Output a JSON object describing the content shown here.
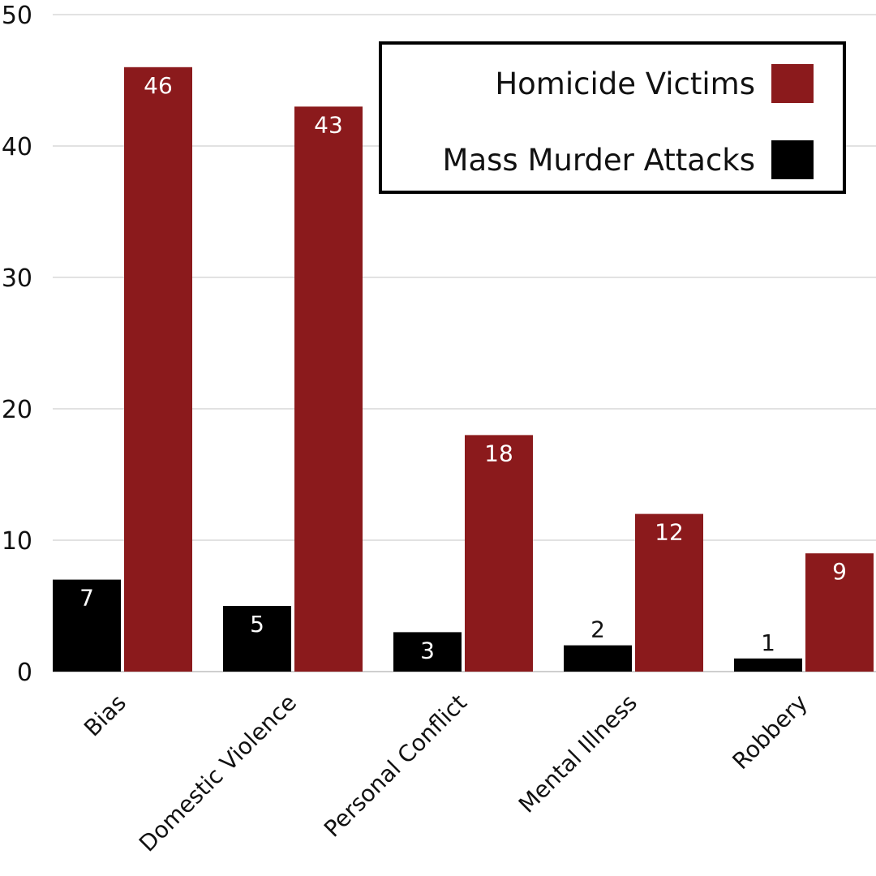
{
  "chart_data": {
    "type": "bar",
    "title": "",
    "xlabel": "",
    "ylabel": "",
    "categories": [
      "Bias",
      "Domestic Violence",
      "Personal Conflict",
      "Mental Illness",
      "Robbery"
    ],
    "series": [
      {
        "name": "Mass Murder Attacks",
        "values": [
          7,
          5,
          3,
          2,
          1
        ],
        "color": "#000000",
        "label_color": "#ffffff"
      },
      {
        "name": "Homicide Victims",
        "values": [
          46,
          43,
          18,
          12,
          9
        ],
        "color": "#8b1a1c",
        "label_color": "#ffffff"
      }
    ],
    "ylim": [
      0,
      50
    ],
    "yticks": [
      0,
      10,
      20,
      30,
      40,
      50
    ],
    "grid": true,
    "legend_position": "top-right",
    "legend": [
      "Homicide Victims",
      "Mass Murder Attacks"
    ]
  }
}
